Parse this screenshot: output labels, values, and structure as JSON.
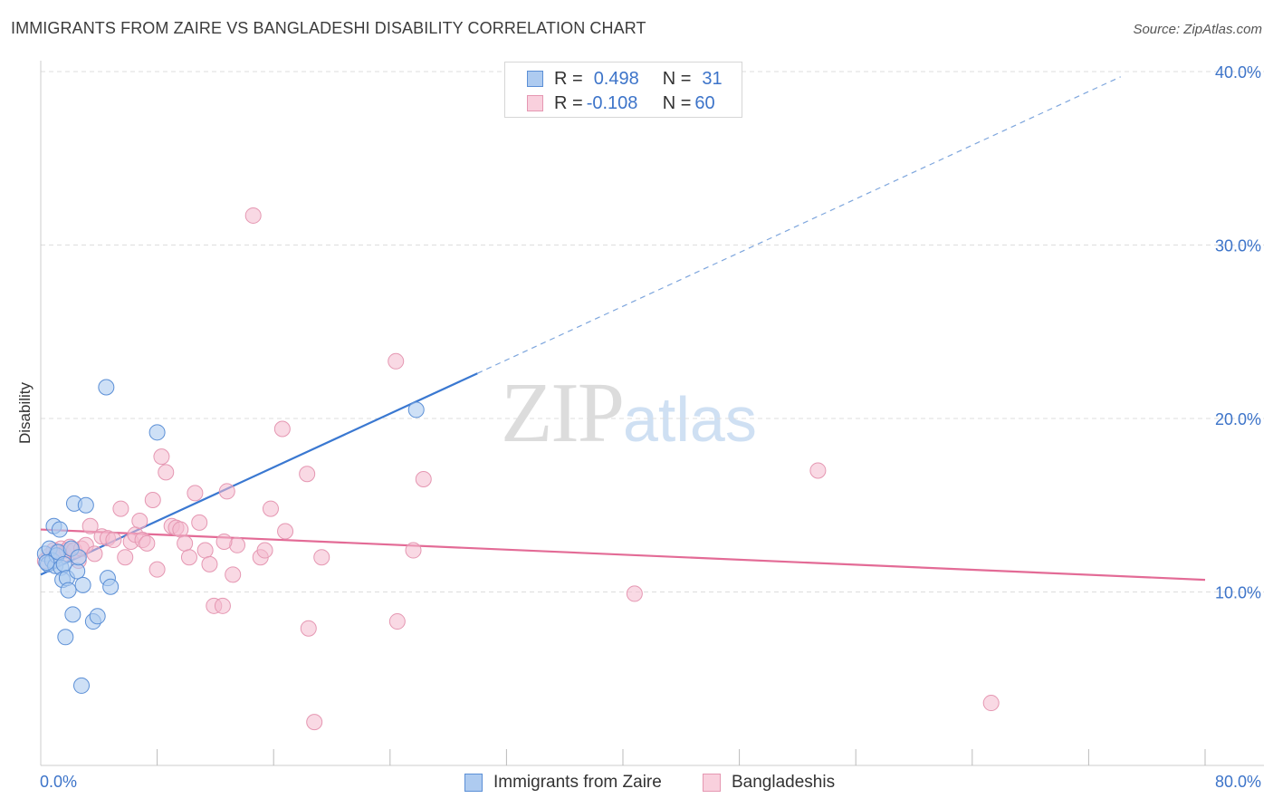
{
  "header": {
    "title": "IMMIGRANTS FROM ZAIRE VS BANGLADESHI DISABILITY CORRELATION CHART",
    "source": "Source: ZipAtlas.com"
  },
  "watermark": {
    "zip": "ZIP",
    "atlas": "atlas"
  },
  "colors": {
    "blue": "#3a78d1",
    "blue_fill": "#aecbf0",
    "pink": "#e36b96",
    "pink_fill": "#f4b9cd",
    "tick": "#3d74c9",
    "grid": "#dddddd"
  },
  "legend_top": {
    "rows": [
      {
        "r_label": "R =",
        "r_value": "0.498",
        "n_label": "N =",
        "n_value": "31"
      },
      {
        "r_label": "R =",
        "r_value": "-0.108",
        "n_label": "N =",
        "n_value": "60"
      }
    ]
  },
  "legend_bottom": {
    "series1": "Immigrants from Zaire",
    "series2": "Bangladeshis"
  },
  "chart_data": {
    "type": "scatter",
    "title": "IMMIGRANTS FROM ZAIRE VS BANGLADESHI DISABILITY CORRELATION CHART",
    "xlabel": "",
    "ylabel": "Disability",
    "xlim": [
      0,
      80
    ],
    "ylim": [
      0,
      40
    ],
    "x_tick_labels": [
      "0.0%",
      "80.0%"
    ],
    "y_ticks": [
      10,
      20,
      30,
      40
    ],
    "y_tick_labels": [
      "10.0%",
      "20.0%",
      "30.0%",
      "40.0%"
    ],
    "grid": true,
    "series": [
      {
        "name": "Immigrants from Zaire",
        "R": 0.498,
        "N": 31,
        "trend": {
          "x0": 0,
          "y0": 11.0,
          "x1": 30.0,
          "y1": 22.6,
          "dash_to_x": 74.2,
          "dash_to_y": 39.7
        },
        "points": [
          [
            0.3,
            12.2
          ],
          [
            0.5,
            11.6
          ],
          [
            0.6,
            12.5
          ],
          [
            0.8,
            11.8
          ],
          [
            0.9,
            13.8
          ],
          [
            1.0,
            11.5
          ],
          [
            1.1,
            12.1
          ],
          [
            1.2,
            12.3
          ],
          [
            1.3,
            13.6
          ],
          [
            1.4,
            11.4
          ],
          [
            1.5,
            10.7
          ],
          [
            1.6,
            11.6
          ],
          [
            1.7,
            7.4
          ],
          [
            1.8,
            10.8
          ],
          [
            1.9,
            10.1
          ],
          [
            2.1,
            12.5
          ],
          [
            2.2,
            8.7
          ],
          [
            2.3,
            15.1
          ],
          [
            2.5,
            11.2
          ],
          [
            2.6,
            12.0
          ],
          [
            2.8,
            4.6
          ],
          [
            2.9,
            10.4
          ],
          [
            3.1,
            15.0
          ],
          [
            3.6,
            8.3
          ],
          [
            3.9,
            8.6
          ],
          [
            4.5,
            21.8
          ],
          [
            4.6,
            10.8
          ],
          [
            4.8,
            10.3
          ],
          [
            8.0,
            19.2
          ],
          [
            25.8,
            20.5
          ],
          [
            0.4,
            11.7
          ]
        ]
      },
      {
        "name": "Bangladeshis",
        "R": -0.108,
        "N": 60,
        "trend": {
          "x0": 0,
          "y0": 13.6,
          "x1": 80,
          "y1": 10.7
        },
        "points": [
          [
            0.3,
            11.8
          ],
          [
            0.6,
            12.1
          ],
          [
            0.9,
            12.4
          ],
          [
            1.1,
            12.3
          ],
          [
            1.4,
            12.5
          ],
          [
            1.6,
            12.2
          ],
          [
            1.8,
            12.4
          ],
          [
            2.0,
            12.6
          ],
          [
            2.3,
            12.4
          ],
          [
            2.6,
            11.8
          ],
          [
            2.8,
            12.5
          ],
          [
            3.1,
            12.7
          ],
          [
            3.4,
            13.8
          ],
          [
            3.7,
            12.2
          ],
          [
            4.2,
            13.2
          ],
          [
            4.6,
            13.1
          ],
          [
            5.0,
            13.0
          ],
          [
            5.5,
            14.8
          ],
          [
            5.8,
            12.0
          ],
          [
            6.2,
            12.9
          ],
          [
            6.5,
            13.3
          ],
          [
            6.8,
            14.1
          ],
          [
            7.0,
            13.0
          ],
          [
            7.3,
            12.8
          ],
          [
            7.7,
            15.3
          ],
          [
            8.0,
            11.3
          ],
          [
            8.3,
            17.8
          ],
          [
            8.6,
            16.9
          ],
          [
            9.0,
            13.8
          ],
          [
            9.3,
            13.7
          ],
          [
            9.6,
            13.6
          ],
          [
            9.9,
            12.8
          ],
          [
            10.2,
            12.0
          ],
          [
            10.6,
            15.7
          ],
          [
            10.9,
            14.0
          ],
          [
            11.3,
            12.4
          ],
          [
            11.6,
            11.6
          ],
          [
            11.9,
            9.2
          ],
          [
            12.5,
            9.2
          ],
          [
            12.8,
            15.8
          ],
          [
            13.2,
            11.0
          ],
          [
            13.5,
            12.7
          ],
          [
            12.6,
            12.9
          ],
          [
            14.6,
            31.7
          ],
          [
            15.1,
            12.0
          ],
          [
            15.4,
            12.4
          ],
          [
            15.8,
            14.8
          ],
          [
            16.6,
            19.4
          ],
          [
            16.8,
            13.5
          ],
          [
            18.3,
            16.8
          ],
          [
            18.4,
            7.9
          ],
          [
            18.8,
            2.5
          ],
          [
            19.3,
            12.0
          ],
          [
            24.4,
            23.3
          ],
          [
            24.5,
            8.3
          ],
          [
            25.6,
            12.4
          ],
          [
            26.3,
            16.5
          ],
          [
            40.8,
            9.9
          ],
          [
            53.4,
            17.0
          ],
          [
            65.3,
            3.6
          ]
        ]
      }
    ]
  }
}
